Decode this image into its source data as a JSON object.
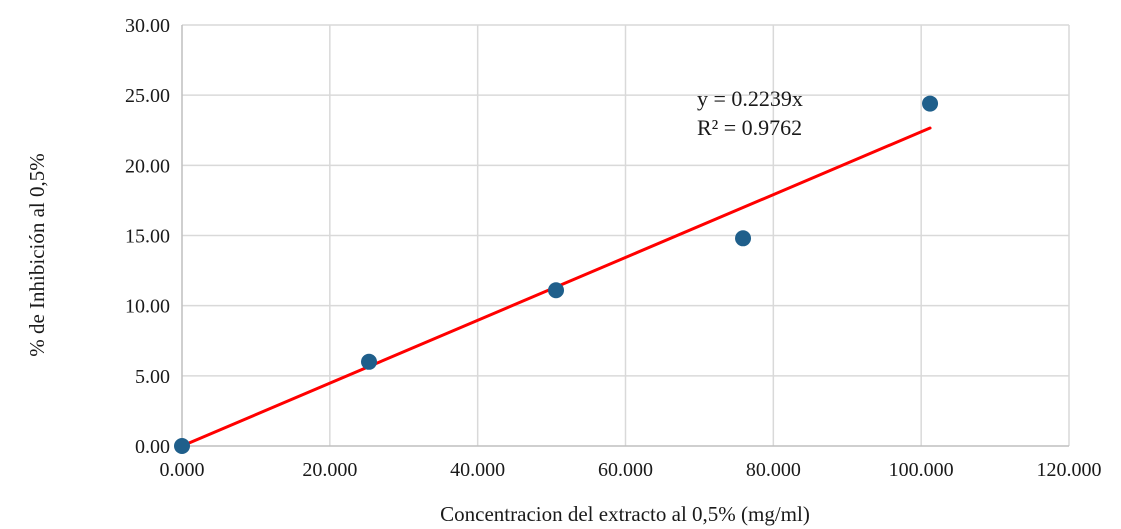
{
  "chart_data": {
    "type": "scatter",
    "title": "",
    "xlabel": "Concentracion del extracto al 0,5% (mg/ml)",
    "ylabel": "% de Inhibición al 0,5%",
    "xlim": [
      0,
      120
    ],
    "ylim": [
      0,
      30
    ],
    "x_ticks": [
      "0.000",
      "20.000",
      "40.000",
      "60.000",
      "80.000",
      "100.000",
      "120.000"
    ],
    "y_ticks": [
      "0.00",
      "5.00",
      "10.00",
      "15.00",
      "20.00",
      "25.00",
      "30.00"
    ],
    "grid": "vertical and horizontal",
    "series": [
      {
        "x": [
          0,
          25.3,
          50.6,
          75.9,
          101.2
        ],
        "y": [
          0,
          6.0,
          11.1,
          14.8,
          24.4
        ],
        "color": "#1f5f8b"
      }
    ],
    "trendline": {
      "type": "linear",
      "slope": 0.2239,
      "intercept": 0,
      "x_range": [
        0,
        101.2
      ],
      "color": "#ff0000",
      "equation": "y = 0.2239x",
      "r_squared": "R² = 0.9762"
    }
  }
}
